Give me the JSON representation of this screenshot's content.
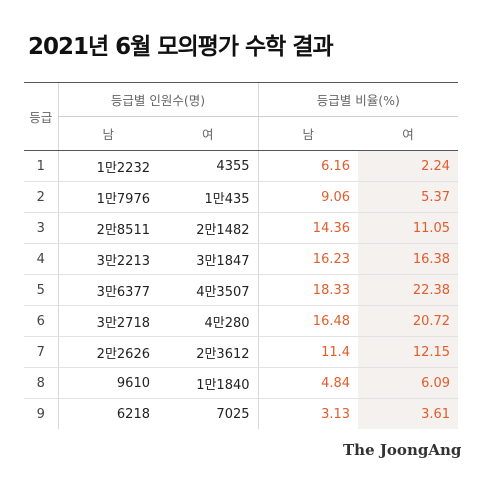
{
  "title": "2021년 6월 모의평가 수학 결과",
  "table": {
    "grade_header": "등급",
    "count_header": "등급별 인원수(명)",
    "ratio_header": "등급별 비율(%)",
    "male_label": "남",
    "female_label": "여",
    "rows": [
      {
        "grade": "1",
        "male_count": "1만2232",
        "female_count": "4355",
        "male_ratio": "6.16",
        "female_ratio": "2.24"
      },
      {
        "grade": "2",
        "male_count": "1만7976",
        "female_count": "1만435",
        "male_ratio": "9.06",
        "female_ratio": "5.37"
      },
      {
        "grade": "3",
        "male_count": "2만8511",
        "female_count": "2만1482",
        "male_ratio": "14.36",
        "female_ratio": "11.05"
      },
      {
        "grade": "4",
        "male_count": "3만2213",
        "female_count": "3만1847",
        "male_ratio": "16.23",
        "female_ratio": "16.38"
      },
      {
        "grade": "5",
        "male_count": "3만6377",
        "female_count": "4만3507",
        "male_ratio": "18.33",
        "female_ratio": "22.38"
      },
      {
        "grade": "6",
        "male_count": "3만2718",
        "female_count": "4만280",
        "male_ratio": "16.48",
        "female_ratio": "20.72"
      },
      {
        "grade": "7",
        "male_count": "2만2626",
        "female_count": "2만3612",
        "male_ratio": "11.4",
        "female_ratio": "12.15"
      },
      {
        "grade": "8",
        "male_count": "9610",
        "female_count": "1만1840",
        "male_ratio": "4.84",
        "female_ratio": "6.09"
      },
      {
        "grade": "9",
        "male_count": "6218",
        "female_count": "7025",
        "male_ratio": "3.13",
        "female_ratio": "3.61"
      }
    ]
  },
  "footer": {
    "logo": "The JoongAng"
  },
  "colors": {
    "ratio_text": "#e25c2c",
    "female_ratio_bg": "#f4f1ef",
    "rule": "#555555"
  }
}
